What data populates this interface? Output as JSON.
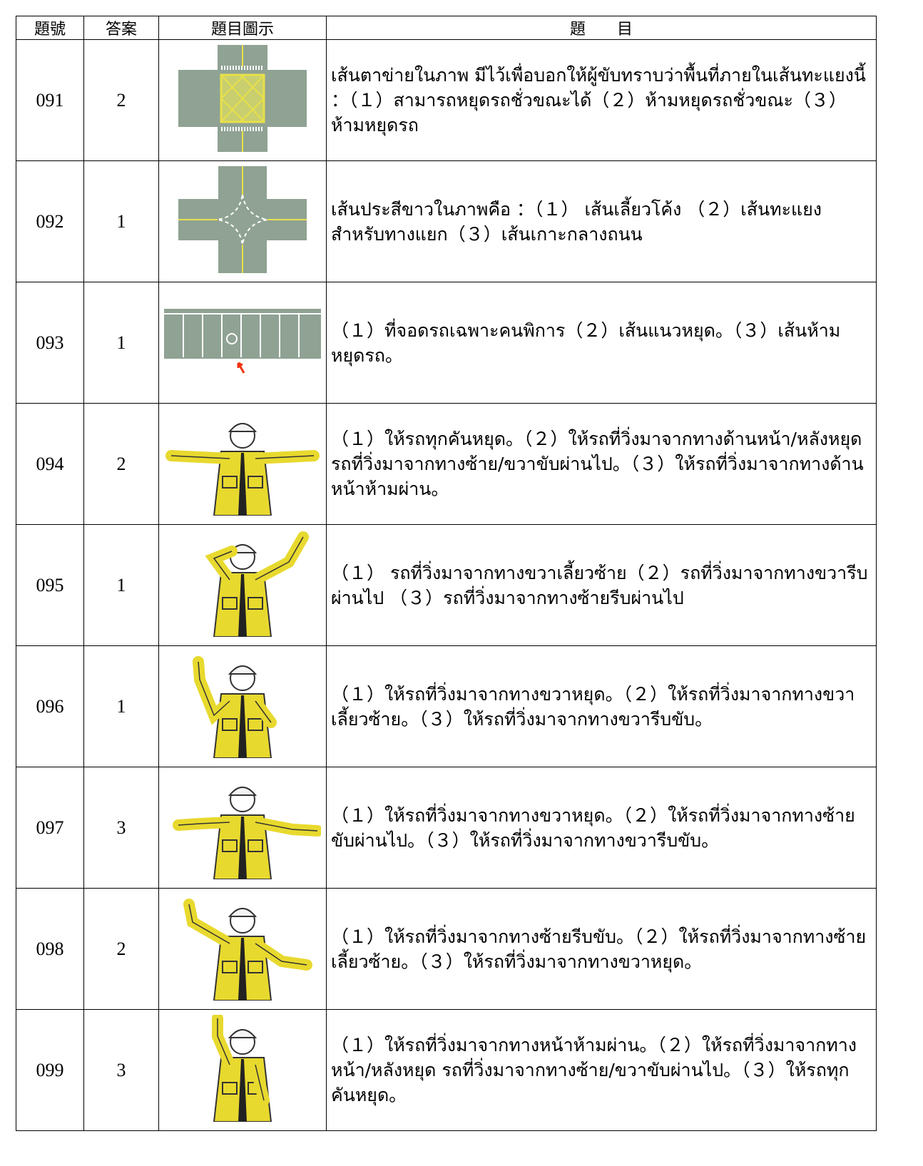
{
  "table": {
    "header": [
      "題號",
      "答案",
      "題目圖示",
      "題　　目"
    ],
    "rows": [
      [
        "091",
        "2",
        "เส้นตาข่ายในภาพ มีไว้เพื่อบอกให้ผู้ขับทราบว่าพื้นที่ภายในเส้นทะแยงนี้ ：（１）สามารถหยุดรถชั่วขณะได้（２）ห้ามหยุดรถชั่วขณะ（３）ห้ามหยุดรถ"
      ],
      [
        "092",
        "1",
        "เส้นประสีขาวในภาพคือ ：（１） เส้นเลี้ยวโค้ง （２）เส้นทะแยงสำหรับทางแยก（３）เส้นเกาะกลางถนน"
      ],
      [
        "093",
        "1",
        "（１）ที่จอดรถเฉพาะคนพิการ（２）เส้นแนวหยุด。（３）เส้นห้ามหยุดรถ。"
      ],
      [
        "094",
        "2",
        "（１）ให้รถทุกคันหยุด。（２）ให้รถที่วิ่งมาจากทางด้านหน้า/หลังหยุด รถที่วิ่งมาจากทางซ้าย/ขวาขับผ่านไป。（３）ให้รถที่วิ่งมาจากทางด้านหน้าห้ามผ่าน。"
      ],
      [
        "095",
        "1",
        "（１） รถที่วิ่งมาจากทางขวาเลี้ยวซ้าย（２）รถที่วิ่งมาจากทางขวารีบผ่านไป （３）รถที่วิ่งมาจากทางซ้ายรีบผ่านไป"
      ],
      [
        "096",
        "1",
        "（１）ให้รถที่วิ่งมาจากทางขวาหยุด。（２）ให้รถที่วิ่งมาจากทางขวาเลี้ยวซ้าย。（３）ให้รถที่วิ่งมาจากทางขวารีบขับ。"
      ],
      [
        "097",
        "3",
        "（１）ให้รถที่วิ่งมาจากทางขวาหยุด。（２）ให้รถที่วิ่งมาจากทางซ้ายขับผ่านไป。（３）ให้รถที่วิ่งมาจากทางขวารีบขับ。"
      ],
      [
        "098",
        "2",
        "（１）ให้รถที่วิ่งมาจากทางซ้ายรีบขับ。（２）ให้รถที่วิ่งมาจากทางซ้ายเลี้ยวซ้าย。（３）ให้รถที่วิ่งมาจากทางขวาหยุด。"
      ],
      [
        "099",
        "3",
        "（１）ให้รถที่วิ่งมาจากทางหน้าห้ามผ่าน。（２）ให้รถที่วิ่งมาจากทางหน้า/หลังหยุด รถที่วิ่งมาจากทางซ้าย/ขวาขับผ่านไป。（３）ให้รถทุกคันหยุด。"
      ]
    ]
  }
}
